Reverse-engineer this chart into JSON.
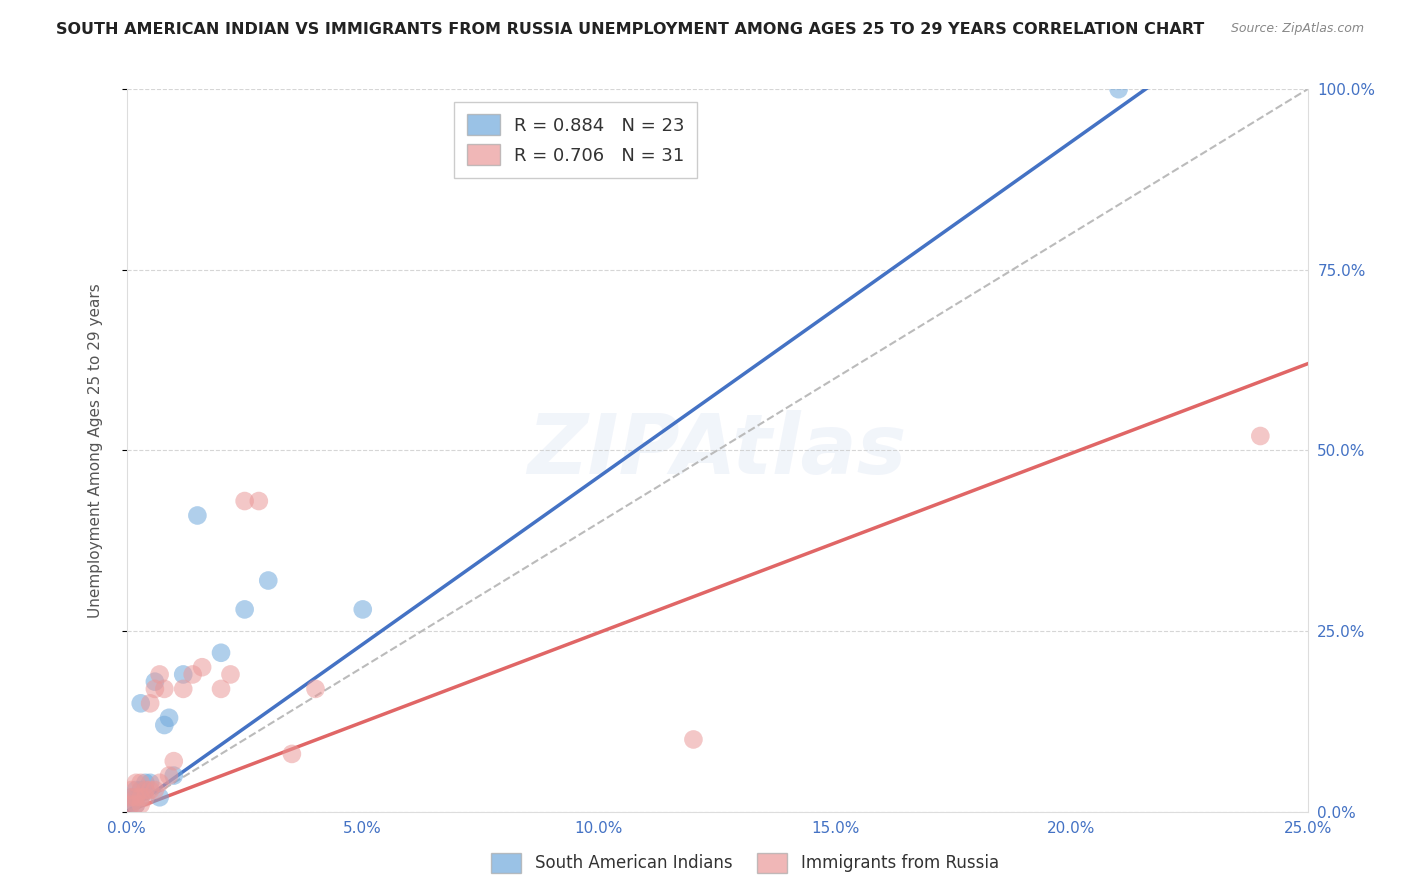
{
  "title": "SOUTH AMERICAN INDIAN VS IMMIGRANTS FROM RUSSIA UNEMPLOYMENT AMONG AGES 25 TO 29 YEARS CORRELATION CHART",
  "source": "Source: ZipAtlas.com",
  "ylabel": "Unemployment Among Ages 25 to 29 years",
  "background_color": "#ffffff",
  "grid_color": "#cccccc",
  "blue_color": "#6fa8dc",
  "pink_color": "#ea9999",
  "line_blue": "#4472c4",
  "line_pink": "#e06666",
  "diag_color": "#bbbbbb",
  "legend_label1": "R = 0.884   N = 23",
  "legend_label2": "R = 0.706   N = 31",
  "legend_label_south": "South American Indians",
  "legend_label_russia": "Immigrants from Russia",
  "watermark": "ZIPAtlas",
  "blue_scatter_x": [
    0.001,
    0.001,
    0.002,
    0.002,
    0.002,
    0.003,
    0.003,
    0.003,
    0.004,
    0.004,
    0.005,
    0.006,
    0.007,
    0.008,
    0.009,
    0.01,
    0.012,
    0.015,
    0.02,
    0.025,
    0.03,
    0.05,
    0.21
  ],
  "blue_scatter_y": [
    0.01,
    0.02,
    0.01,
    0.02,
    0.03,
    0.02,
    0.03,
    0.15,
    0.03,
    0.04,
    0.04,
    0.18,
    0.02,
    0.12,
    0.13,
    0.05,
    0.19,
    0.41,
    0.22,
    0.28,
    0.32,
    0.28,
    1.0
  ],
  "pink_scatter_x": [
    0.001,
    0.001,
    0.001,
    0.002,
    0.002,
    0.002,
    0.003,
    0.003,
    0.003,
    0.004,
    0.004,
    0.005,
    0.005,
    0.006,
    0.006,
    0.007,
    0.007,
    0.008,
    0.009,
    0.01,
    0.012,
    0.014,
    0.016,
    0.02,
    0.022,
    0.025,
    0.028,
    0.035,
    0.04,
    0.12,
    0.24
  ],
  "pink_scatter_y": [
    0.01,
    0.02,
    0.03,
    0.01,
    0.02,
    0.04,
    0.01,
    0.02,
    0.04,
    0.02,
    0.03,
    0.03,
    0.15,
    0.03,
    0.17,
    0.04,
    0.19,
    0.17,
    0.05,
    0.07,
    0.17,
    0.19,
    0.2,
    0.17,
    0.19,
    0.43,
    0.43,
    0.08,
    0.17,
    0.1,
    0.52
  ],
  "blue_line_x": [
    0.0,
    0.22
  ],
  "blue_line_y": [
    0.0,
    1.02
  ],
  "pink_line_x": [
    0.0,
    0.25
  ],
  "pink_line_y": [
    0.0,
    0.62
  ],
  "diag_line_x": [
    0.0,
    0.25
  ],
  "diag_line_y": [
    0.0,
    1.0
  ],
  "xlim": [
    0.0,
    0.25
  ],
  "ylim": [
    0.0,
    1.0
  ],
  "x_ticks": [
    0.0,
    0.05,
    0.1,
    0.15,
    0.2,
    0.25
  ],
  "x_tick_labels": [
    "0.0%",
    "5.0%",
    "10.0%",
    "15.0%",
    "20.0%",
    "25.0%"
  ],
  "y_ticks": [
    0.0,
    0.25,
    0.5,
    0.75,
    1.0
  ],
  "y_tick_labels": [
    "0.0%",
    "25.0%",
    "50.0%",
    "75.0%",
    "100.0%"
  ]
}
